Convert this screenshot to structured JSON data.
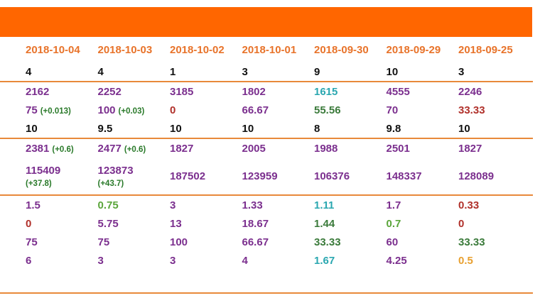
{
  "dates": [
    "2018-10-04",
    "2018-10-03",
    "2018-10-02",
    "2018-10-01",
    "2018-09-30",
    "2018-09-29",
    "2018-09-25"
  ],
  "row_counts1": [
    "4",
    "4",
    "1",
    "3",
    "9",
    "10",
    "3"
  ],
  "row_a": [
    {
      "v": "2162",
      "c": "purple"
    },
    {
      "v": "2252",
      "c": "purple"
    },
    {
      "v": "3185",
      "c": "purple"
    },
    {
      "v": "1802",
      "c": "purple"
    },
    {
      "v": "1615",
      "c": "teal"
    },
    {
      "v": "4555",
      "c": "purple"
    },
    {
      "v": "2246",
      "c": "purple"
    }
  ],
  "row_b": [
    {
      "v": "75",
      "c": "purple",
      "d": "(+0.013)"
    },
    {
      "v": "100",
      "c": "purple",
      "d": "(+0.03)"
    },
    {
      "v": "0",
      "c": "red",
      "d": ""
    },
    {
      "v": "66.67",
      "c": "purple",
      "d": ""
    },
    {
      "v": "55.56",
      "c": "green",
      "d": ""
    },
    {
      "v": "70",
      "c": "purple",
      "d": ""
    },
    {
      "v": "33.33",
      "c": "red",
      "d": ""
    }
  ],
  "row_counts2": [
    "10",
    "9.5",
    "10",
    "10",
    "8",
    "9.8",
    "10"
  ],
  "row_c": [
    {
      "v": "2381",
      "c": "purple",
      "d": "(+0.6)"
    },
    {
      "v": "2477",
      "c": "purple",
      "d": "(+0.6)"
    },
    {
      "v": "1827",
      "c": "purple",
      "d": ""
    },
    {
      "v": "2005",
      "c": "purple",
      "d": ""
    },
    {
      "v": "1988",
      "c": "purple",
      "d": ""
    },
    {
      "v": "2501",
      "c": "purple",
      "d": ""
    },
    {
      "v": "1827",
      "c": "purple",
      "d": ""
    }
  ],
  "row_d": [
    {
      "v": "115409",
      "c": "purple",
      "d": "(+37.8)"
    },
    {
      "v": "123873",
      "c": "purple",
      "d": "(+43.7)"
    },
    {
      "v": "187502",
      "c": "purple",
      "d": ""
    },
    {
      "v": "123959",
      "c": "purple",
      "d": ""
    },
    {
      "v": "106376",
      "c": "purple",
      "d": ""
    },
    {
      "v": "148337",
      "c": "purple",
      "d": ""
    },
    {
      "v": "128089",
      "c": "purple",
      "d": ""
    }
  ],
  "row_e": [
    {
      "v": "1.5",
      "c": "purple"
    },
    {
      "v": "0.75",
      "c": "lgreen"
    },
    {
      "v": "3",
      "c": "purple"
    },
    {
      "v": "1.33",
      "c": "purple"
    },
    {
      "v": "1.11",
      "c": "teal"
    },
    {
      "v": "1.7",
      "c": "purple"
    },
    {
      "v": "0.33",
      "c": "red"
    }
  ],
  "row_f": [
    {
      "v": "0",
      "c": "red"
    },
    {
      "v": "5.75",
      "c": "purple"
    },
    {
      "v": "13",
      "c": "purple"
    },
    {
      "v": "18.67",
      "c": "purple"
    },
    {
      "v": "1.44",
      "c": "green"
    },
    {
      "v": "0.7",
      "c": "lgreen"
    },
    {
      "v": "0",
      "c": "red"
    }
  ],
  "row_g": [
    {
      "v": "75",
      "c": "purple"
    },
    {
      "v": "75",
      "c": "purple"
    },
    {
      "v": "100",
      "c": "purple"
    },
    {
      "v": "66.67",
      "c": "purple"
    },
    {
      "v": "33.33",
      "c": "green"
    },
    {
      "v": "60",
      "c": "purple"
    },
    {
      "v": "33.33",
      "c": "green"
    }
  ],
  "row_h": [
    {
      "v": "6",
      "c": "purple"
    },
    {
      "v": "3",
      "c": "purple"
    },
    {
      "v": "3",
      "c": "purple"
    },
    {
      "v": "4",
      "c": "purple"
    },
    {
      "v": "1.67",
      "c": "teal"
    },
    {
      "v": "4.25",
      "c": "purple"
    },
    {
      "v": "0.5",
      "c": "gold"
    }
  ],
  "colors": {
    "banner": "#ff6600",
    "date": "#e8732a",
    "purple": "#7b2f8e",
    "teal": "#2aa7b0",
    "red": "#b0302a",
    "green": "#3a7a3a",
    "lgreen": "#5aa53a",
    "gold": "#e8a030"
  }
}
